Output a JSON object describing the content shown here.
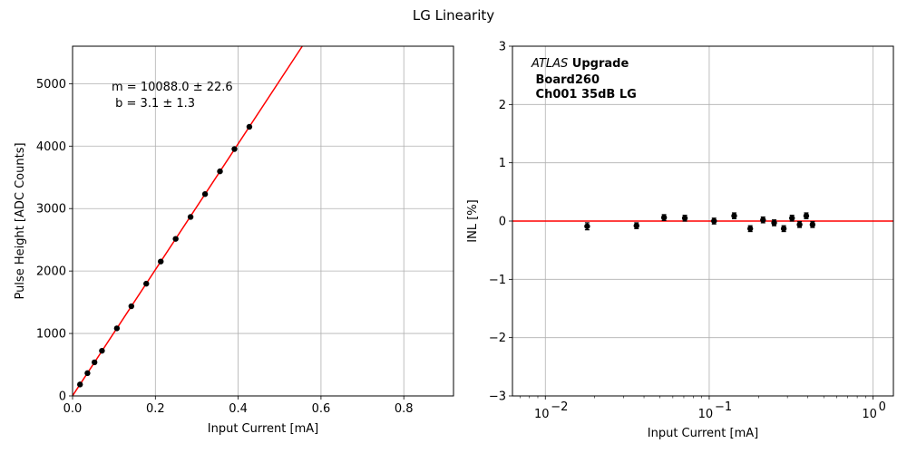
{
  "figure": {
    "suptitle": "LG Linearity"
  },
  "chart_data": [
    {
      "type": "scatter",
      "title": "",
      "xlabel": "Input Current [mA]",
      "ylabel": "Pulse Height [ADC Counts]",
      "xlim": [
        0.0,
        0.92
      ],
      "ylim": [
        0,
        5600
      ],
      "xticks": [
        0.0,
        0.2,
        0.4,
        0.6,
        0.8
      ],
      "xtick_labels": [
        "0.0",
        "0.2",
        "0.4",
        "0.6",
        "0.8"
      ],
      "yticks": [
        0,
        1000,
        2000,
        3000,
        4000,
        5000
      ],
      "ytick_labels": [
        "0",
        "1000",
        "2000",
        "3000",
        "4000",
        "5000"
      ],
      "grid": true,
      "series": [
        {
          "kind": "points",
          "color": "#000000",
          "x": [
            0.018,
            0.036,
            0.053,
            0.071,
            0.107,
            0.142,
            0.178,
            0.213,
            0.249,
            0.285,
            0.32,
            0.356,
            0.391,
            0.427
          ],
          "y": [
            183,
            365,
            538,
            723,
            1082,
            1436,
            1797,
            2152,
            2515,
            2866,
            3232,
            3596,
            3953,
            4309
          ]
        },
        {
          "kind": "line",
          "color": "#ff0000",
          "slope": 10088.0,
          "intercept": 3.1
        }
      ],
      "annotations": [
        "m = 10088.0 ± 22.6",
        " b = 3.1 ± 1.3"
      ]
    },
    {
      "type": "scatter",
      "title": "",
      "xlabel": "Input Current [mA]",
      "ylabel": "INL [%]",
      "xscale": "log",
      "xlim": [
        0.0063,
        1.33
      ],
      "ylim": [
        -3,
        3
      ],
      "xticks": [
        0.01,
        0.1,
        1
      ],
      "xtick_labels": [
        "10",
        "10",
        "10"
      ],
      "xtick_exponents": [
        "−2",
        "−1",
        "0"
      ],
      "yticks": [
        -3,
        -2,
        -1,
        0,
        1,
        2,
        3
      ],
      "ytick_labels": [
        "−3",
        "−2",
        "−1",
        "0",
        "1",
        "2",
        "3"
      ],
      "grid": true,
      "series": [
        {
          "kind": "errorbar",
          "color": "#000000",
          "x": [
            0.018,
            0.036,
            0.053,
            0.071,
            0.107,
            0.142,
            0.178,
            0.213,
            0.249,
            0.285,
            0.32,
            0.356,
            0.391,
            0.427
          ],
          "y": [
            -0.09,
            -0.08,
            0.06,
            0.05,
            0.0,
            0.09,
            -0.13,
            0.02,
            -0.03,
            -0.13,
            0.05,
            -0.06,
            0.09,
            -0.06
          ],
          "yerr": [
            0.06,
            0.05,
            0.05,
            0.05,
            0.05,
            0.05,
            0.05,
            0.05,
            0.05,
            0.05,
            0.05,
            0.05,
            0.05,
            0.05
          ]
        },
        {
          "kind": "hline",
          "color": "#ff0000",
          "y": 0
        }
      ],
      "annotations": {
        "atlas": "ATLAS",
        "upgrade": " Upgrade",
        "board": " Board260",
        "channel": " Ch001 35dB LG"
      }
    }
  ]
}
